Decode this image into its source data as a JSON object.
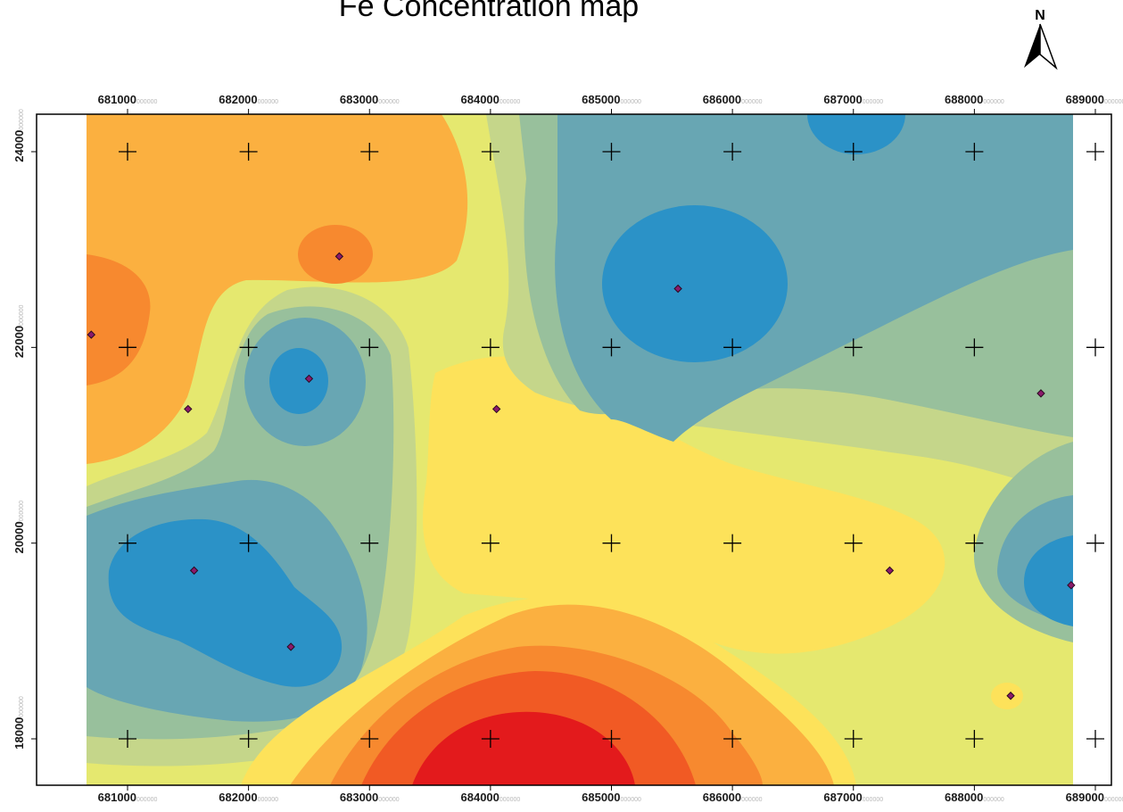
{
  "title": "Fe Concentration map",
  "north_arrow": {
    "label": "N"
  },
  "palette": {
    "c_max": "#e31a1c",
    "c_redorange": "#f15a24",
    "c_orange": "#f7892f",
    "c_lightorange": "#fbb040",
    "c_yellow": "#fde25a",
    "c_lightyellow": "#e5e86f",
    "c_yellowgreen": "#c5d68a",
    "c_sage": "#98c09c",
    "c_teal": "#68a6b3",
    "c_blue": "#2b92c7",
    "point_fill": "#8b1a6b",
    "point_stroke": "#2a0a20"
  },
  "chart_data": {
    "type": "heatmap",
    "title": "Fe Concentration map",
    "x_axis": {
      "ticks": [
        681000,
        682000,
        683000,
        684000,
        685000,
        686000,
        687000,
        688000,
        689000
      ],
      "tick_labels": [
        "681000",
        "682000",
        "683000",
        "684000",
        "685000",
        "686000",
        "687000",
        "688000",
        "689000"
      ],
      "tick_suffix": "000000",
      "range": [
        680300,
        689200
      ]
    },
    "y_axis": {
      "ticks": [
        18000,
        20000,
        22000,
        24000
      ],
      "tick_labels": [
        "18000",
        "20000",
        "22000",
        "24000"
      ],
      "tick_suffix": "000000",
      "range": [
        17500,
        24400
      ]
    },
    "grid": "cross markers at every tick intersection",
    "sample_points": [
      {
        "x": 680700,
        "y": 22130
      },
      {
        "x": 681500,
        "y": 21370
      },
      {
        "x": 682500,
        "y": 21680
      },
      {
        "x": 682750,
        "y": 22930
      },
      {
        "x": 684050,
        "y": 21370
      },
      {
        "x": 685550,
        "y": 22600
      },
      {
        "x": 688550,
        "y": 21530
      },
      {
        "x": 681550,
        "y": 19720
      },
      {
        "x": 682350,
        "y": 18940
      },
      {
        "x": 687300,
        "y": 19720
      },
      {
        "x": 688800,
        "y": 19570
      },
      {
        "x": 688300,
        "y": 18440
      }
    ]
  }
}
